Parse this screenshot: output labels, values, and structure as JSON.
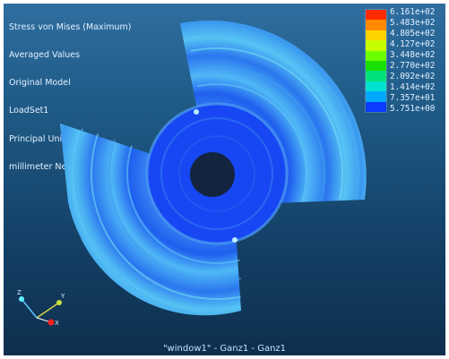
{
  "info_lines": [
    "Stress von Mises (Maximum)",
    "Averaged Values",
    "Original Model",
    "LoadSet1",
    "Principal Units:",
    "millimeter Newton Second (mmNs)"
  ],
  "legend": {
    "labels": [
      "6.161e+02",
      "5.483e+02",
      "4.805e+02",
      "4.127e+02",
      "3.448e+02",
      "2.770e+02",
      "2.092e+02",
      "1.414e+02",
      "7.357e+01",
      "5.751e+00"
    ],
    "colors": [
      "#ff2a00",
      "#ff8a00",
      "#ffd400",
      "#c8ff00",
      "#6cff00",
      "#19e000",
      "#00e07a",
      "#00e0d0",
      "#00a8ff",
      "#0b3bff"
    ]
  },
  "axes": {
    "x_label": "X",
    "y_label": "Y",
    "z_label": "Z"
  },
  "footer_text": "\"window1\" - Ganz1 - Ganz1"
}
